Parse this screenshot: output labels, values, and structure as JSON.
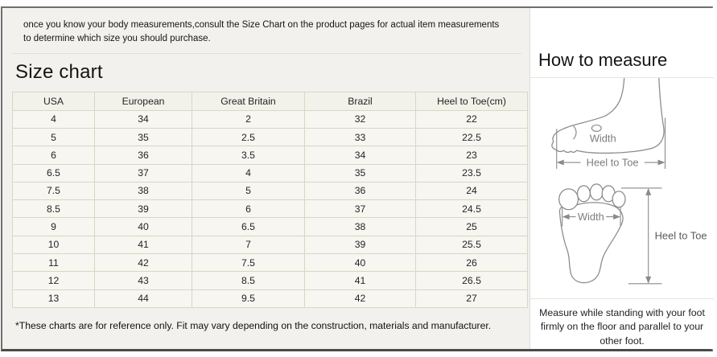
{
  "page": {
    "intro_note": "once you know your body measurements,consult the Size Chart on the product pages for actual item measurements to determine which size you should purchase."
  },
  "size_chart": {
    "title": "Size chart",
    "table": {
      "headers": [
        "USA",
        "European",
        "Great Britain",
        "Brazil",
        "Heel to Toe(cm)"
      ],
      "rows": [
        [
          "4",
          "34",
          "2",
          "32",
          "22"
        ],
        [
          "5",
          "35",
          "2.5",
          "33",
          "22.5"
        ],
        [
          "6",
          "36",
          "3.5",
          "34",
          "23"
        ],
        [
          "6.5",
          "37",
          "4",
          "35",
          "23.5"
        ],
        [
          "7.5",
          "38",
          "5",
          "36",
          "24"
        ],
        [
          "8.5",
          "39",
          "6",
          "37",
          "24.5"
        ],
        [
          "9",
          "40",
          "6.5",
          "38",
          "25"
        ],
        [
          "10",
          "41",
          "7",
          "39",
          "25.5"
        ],
        [
          "11",
          "42",
          "7.5",
          "40",
          "26"
        ],
        [
          "12",
          "43",
          "8.5",
          "41",
          "26.5"
        ],
        [
          "13",
          "44",
          "9.5",
          "42",
          "27"
        ]
      ]
    },
    "footnote": "*These charts are for reference only. Fit may vary depending on the construction, materials and manufacturer."
  },
  "how_to_measure": {
    "title": "How to measure",
    "side_view_diagram": {
      "width_label": "Width",
      "heel_to_toe_label": "Heel to Toe"
    },
    "top_view_diagram": {
      "width_label": "Width",
      "heel_to_toe_label": "Heel to Toe"
    },
    "instruction": "Measure while standing with your foot firmly on the floor and parallel to your other foot."
  },
  "colors": {
    "left_panel_bg": "#f2f1ee",
    "table_cell_bg": "#f7f6f1",
    "table_header_bg": "#f3f2ea",
    "table_border": "#d9d6c3",
    "frame_border": "#6e6e6e",
    "sketch_line": "#8c8c8c",
    "text": "#1a1a1a"
  }
}
